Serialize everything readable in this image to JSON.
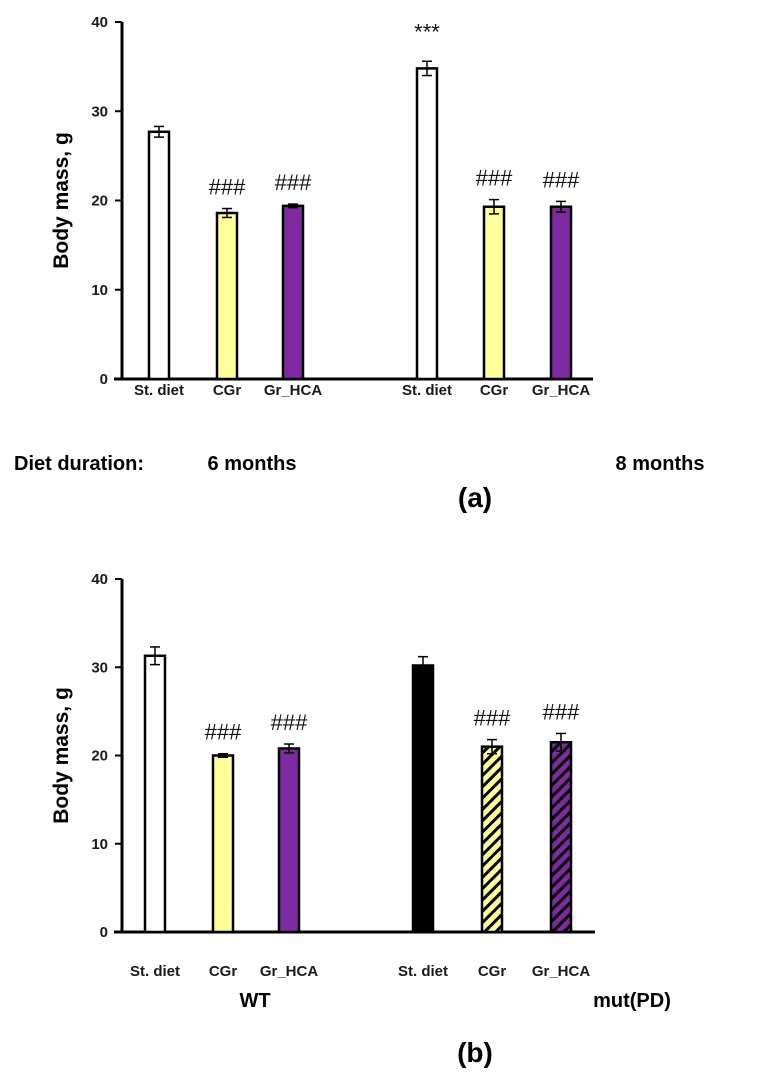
{
  "colors": {
    "white": "#ffffff",
    "yellow": "#ffff99",
    "purple": "#7f2aa0",
    "black": "#000000"
  },
  "chart_data": [
    {
      "type": "bar",
      "panel_label": "(a)",
      "ylabel": "Body mass, g",
      "ylim": [
        0,
        40
      ],
      "yticks": [
        "0",
        "10",
        "20",
        "30",
        "40"
      ],
      "categories": [
        "St. diet",
        "CGr",
        "Gr_HCA",
        "St. diet",
        "CGr",
        "Gr_HCA"
      ],
      "values": [
        27.7,
        18.6,
        19.4,
        34.8,
        19.3,
        19.3
      ],
      "errors": [
        0.6,
        0.5,
        0.2,
        0.8,
        0.8,
        0.6
      ],
      "fills": [
        "white",
        "yellow",
        "purple",
        "white",
        "yellow",
        "purple"
      ],
      "hatched": [
        false,
        false,
        false,
        false,
        false,
        false
      ],
      "annotations": [
        "",
        "###",
        "###",
        "***",
        "###",
        "###"
      ],
      "row_label": "Diet duration:",
      "groups": [
        "6 months",
        "8 months"
      ]
    },
    {
      "type": "bar",
      "panel_label": "(b)",
      "ylabel": "Body mass, g",
      "ylim": [
        0,
        40
      ],
      "yticks": [
        "0",
        "10",
        "20",
        "30",
        "40"
      ],
      "categories": [
        "St. diet",
        "CGr",
        "Gr_HCA",
        "St. diet",
        "CGr",
        "Gr_HCA"
      ],
      "values": [
        31.3,
        20.0,
        20.8,
        30.2,
        21.0,
        21.5
      ],
      "errors": [
        1.0,
        0.2,
        0.5,
        1.0,
        0.8,
        1.0
      ],
      "fills": [
        "white",
        "yellow",
        "purple",
        "black",
        "yellow",
        "purple"
      ],
      "hatched": [
        false,
        false,
        false,
        false,
        true,
        true
      ],
      "annotations": [
        "",
        "###",
        "###",
        "",
        "###",
        "###"
      ],
      "row_label": "",
      "groups": [
        "WT",
        "mut(PD)"
      ]
    }
  ]
}
